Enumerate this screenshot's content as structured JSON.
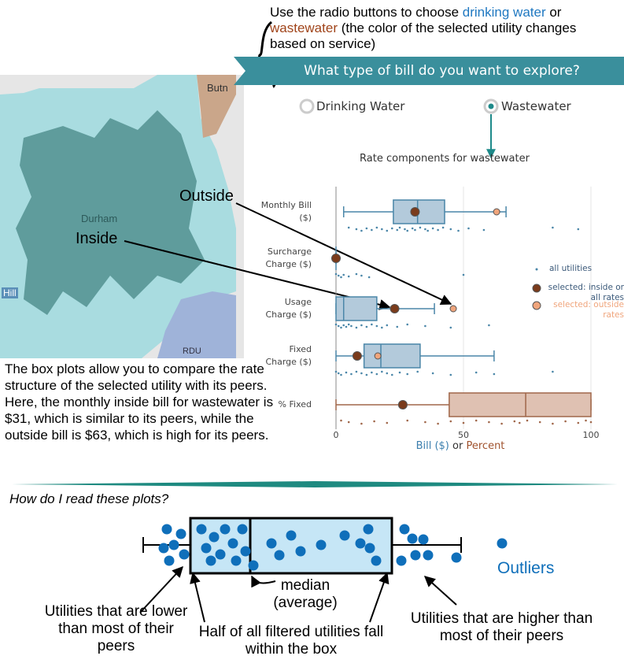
{
  "instructions": {
    "parts": [
      "Use the radio buttons to choose",
      "drinking water",
      "or",
      "wastewater",
      "(the color of the selected utility changes based on service)"
    ]
  },
  "panel": {
    "question": "What type of bill do you want to explore?",
    "options": [
      "Drinking Water",
      "Wastewater"
    ],
    "selected": 1
  },
  "map": {
    "labels": [
      "Butn",
      "Durham",
      "Hill",
      "RDU"
    ]
  },
  "annotations": {
    "outside": "Outside",
    "inside": "Inside"
  },
  "explanation": "The box plots allow you to compare the rate structure of the selected utility with its peers.  Here, the monthly inside bill for wastewater is $31, which is similar to its peers, while the outside bill is $63, which is high for its peers.",
  "chart_data": {
    "type": "box",
    "title": "Rate components for wastewater",
    "categories": [
      "Monthly Bill ($)",
      "Surcharge Charge ($)",
      "Usage Charge ($)",
      "Fixed Charge ($)",
      "% Fixed"
    ],
    "box_colors": [
      "#4a86a8",
      "#4a86a8",
      "#4a86a8",
      "#4a86a8",
      "#a0674a"
    ],
    "box_fills": [
      "#b3cadb",
      "#b3cadb",
      "#b3cadb",
      "#b3cadb",
      "#dfc1b2"
    ],
    "boxes": [
      {
        "min": 3,
        "q1": 22.5,
        "median": 32,
        "q3": 42.6,
        "max": 66.7
      },
      {
        "min": 0,
        "q1": 0,
        "median": 0,
        "q3": 0,
        "max": 0
      },
      {
        "min": 0,
        "q1": 0,
        "median": 3,
        "q3": 16,
        "max": 38.6
      },
      {
        "min": 0,
        "q1": 11,
        "median": 17.6,
        "q3": 33,
        "max": 62
      },
      {
        "min": 0,
        "q1": 44.4,
        "median": 74.4,
        "q3": 100,
        "max": 100
      }
    ],
    "selected_inside": [
      31,
      0,
      23,
      8.3,
      26.2
    ],
    "selected_outside": [
      63,
      null,
      46,
      16.4,
      null
    ],
    "points": [
      [
        5,
        8,
        10,
        12,
        14,
        16,
        18,
        20,
        22,
        24,
        25,
        27,
        28,
        30,
        31,
        33,
        35,
        36,
        38,
        40,
        42,
        45,
        48,
        52,
        58,
        85,
        95
      ],
      [
        0,
        1,
        2,
        3,
        5,
        8,
        10,
        13,
        50
      ],
      [
        0,
        1,
        2,
        3,
        4,
        5,
        6,
        8,
        10,
        12,
        14,
        16,
        18,
        20,
        24,
        28,
        35,
        45,
        60
      ],
      [
        0,
        1,
        2,
        4,
        6,
        8,
        10,
        12,
        14,
        16,
        18,
        20,
        22,
        25,
        28,
        32,
        38,
        45,
        55,
        62,
        85
      ],
      [
        2,
        5,
        10,
        15,
        20,
        28,
        35,
        40,
        45,
        50,
        55,
        60,
        65,
        70,
        72,
        75,
        80,
        85,
        90,
        95,
        98,
        100
      ]
    ],
    "legend": [
      {
        "name": "all utilities",
        "color": "#4a86a8"
      },
      {
        "name": "selected: inside or all rates",
        "color": "#7a3b1b"
      },
      {
        "name": "selected: outside rates",
        "color": "#f0a57c"
      }
    ],
    "x_label": [
      {
        "text": "Bill ($)",
        "color": "#3c7fae"
      },
      {
        "text": "or",
        "color": "#333333"
      },
      {
        "text": "Percent",
        "color": "#a0522d"
      }
    ],
    "xlim": [
      0,
      100
    ],
    "xticks": [
      0,
      50,
      100
    ],
    "grid": true
  },
  "guide": {
    "title": "How do I read these plots?",
    "outliers": "Outliers",
    "median": "median (average)",
    "lower": "Utilities that are lower than most of their peers",
    "box": "Half of all filtered utilities fall within the box",
    "higher": "Utilities that are higher than most of their peers"
  }
}
